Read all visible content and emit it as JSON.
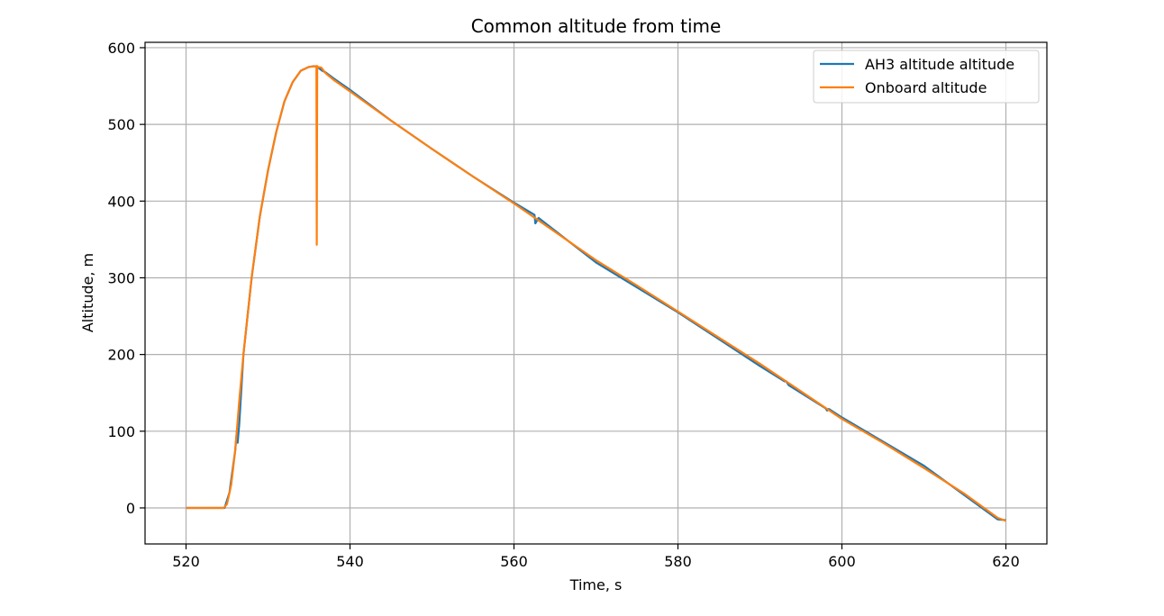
{
  "chart_data": {
    "type": "line",
    "title": "Common altitude from time",
    "xlabel": "Time, s",
    "ylabel": "Altitude, m",
    "xlim": [
      515,
      625
    ],
    "ylim": [
      -47,
      607
    ],
    "xticks": [
      520,
      540,
      560,
      580,
      600,
      620
    ],
    "yticks": [
      0,
      100,
      200,
      300,
      400,
      500,
      600
    ],
    "grid": true,
    "legend_position": "top-right",
    "series": [
      {
        "name": "AH3 altitude altitude",
        "color": "#1f77b4",
        "x": [
          520,
          524.7,
          525.3,
          526.0,
          526.2,
          526.3,
          526.5,
          527.0,
          528.0,
          529.0,
          530.0,
          531.0,
          532.0,
          533.0,
          534.0,
          535.0,
          535.6,
          536.0,
          536.6,
          537.0,
          538.0,
          540.0,
          545.0,
          550.0,
          555.0,
          560.0,
          562.5,
          562.6,
          563.0,
          570.0,
          580.0,
          590.0,
          593.0,
          593.2,
          593.5,
          598.0,
          598.2,
          598.4,
          600.0,
          610.0,
          619.0,
          620.0
        ],
        "y": [
          0,
          0,
          20,
          75,
          100,
          85,
          110,
          200,
          300,
          380,
          440,
          490,
          530,
          555,
          570,
          575,
          576,
          575,
          570,
          568,
          560,
          545,
          505,
          468,
          432,
          398,
          382,
          371,
          378,
          320,
          255,
          185,
          165,
          165,
          160,
          130,
          127,
          129,
          118,
          55,
          -15,
          -16
        ]
      },
      {
        "name": "Onboard altitude",
        "color": "#ff7f0e",
        "x": [
          520,
          524.6,
          525.0,
          525.5,
          526.0,
          526.5,
          527.0,
          528.0,
          529.0,
          530.0,
          531.0,
          532.0,
          533.0,
          534.0,
          535.0,
          535.9,
          535.95,
          536.0,
          536.05,
          536.5,
          537.0,
          538.0,
          540.0,
          545.0,
          550.0,
          555.0,
          560.0,
          565.0,
          570.0,
          575.0,
          580.0,
          585.0,
          590.0,
          595.0,
          600.0,
          605.0,
          610.0,
          615.0,
          619.0,
          620.0
        ],
        "y": [
          0,
          0,
          5,
          30,
          75,
          140,
          200,
          300,
          380,
          440,
          490,
          530,
          555,
          570,
          575,
          576,
          343,
          576,
          575,
          574,
          567,
          558,
          543,
          505,
          468,
          432,
          397,
          360,
          323,
          290,
          256,
          222,
          188,
          152,
          116,
          85,
          52,
          18,
          -13,
          -17
        ]
      }
    ]
  }
}
